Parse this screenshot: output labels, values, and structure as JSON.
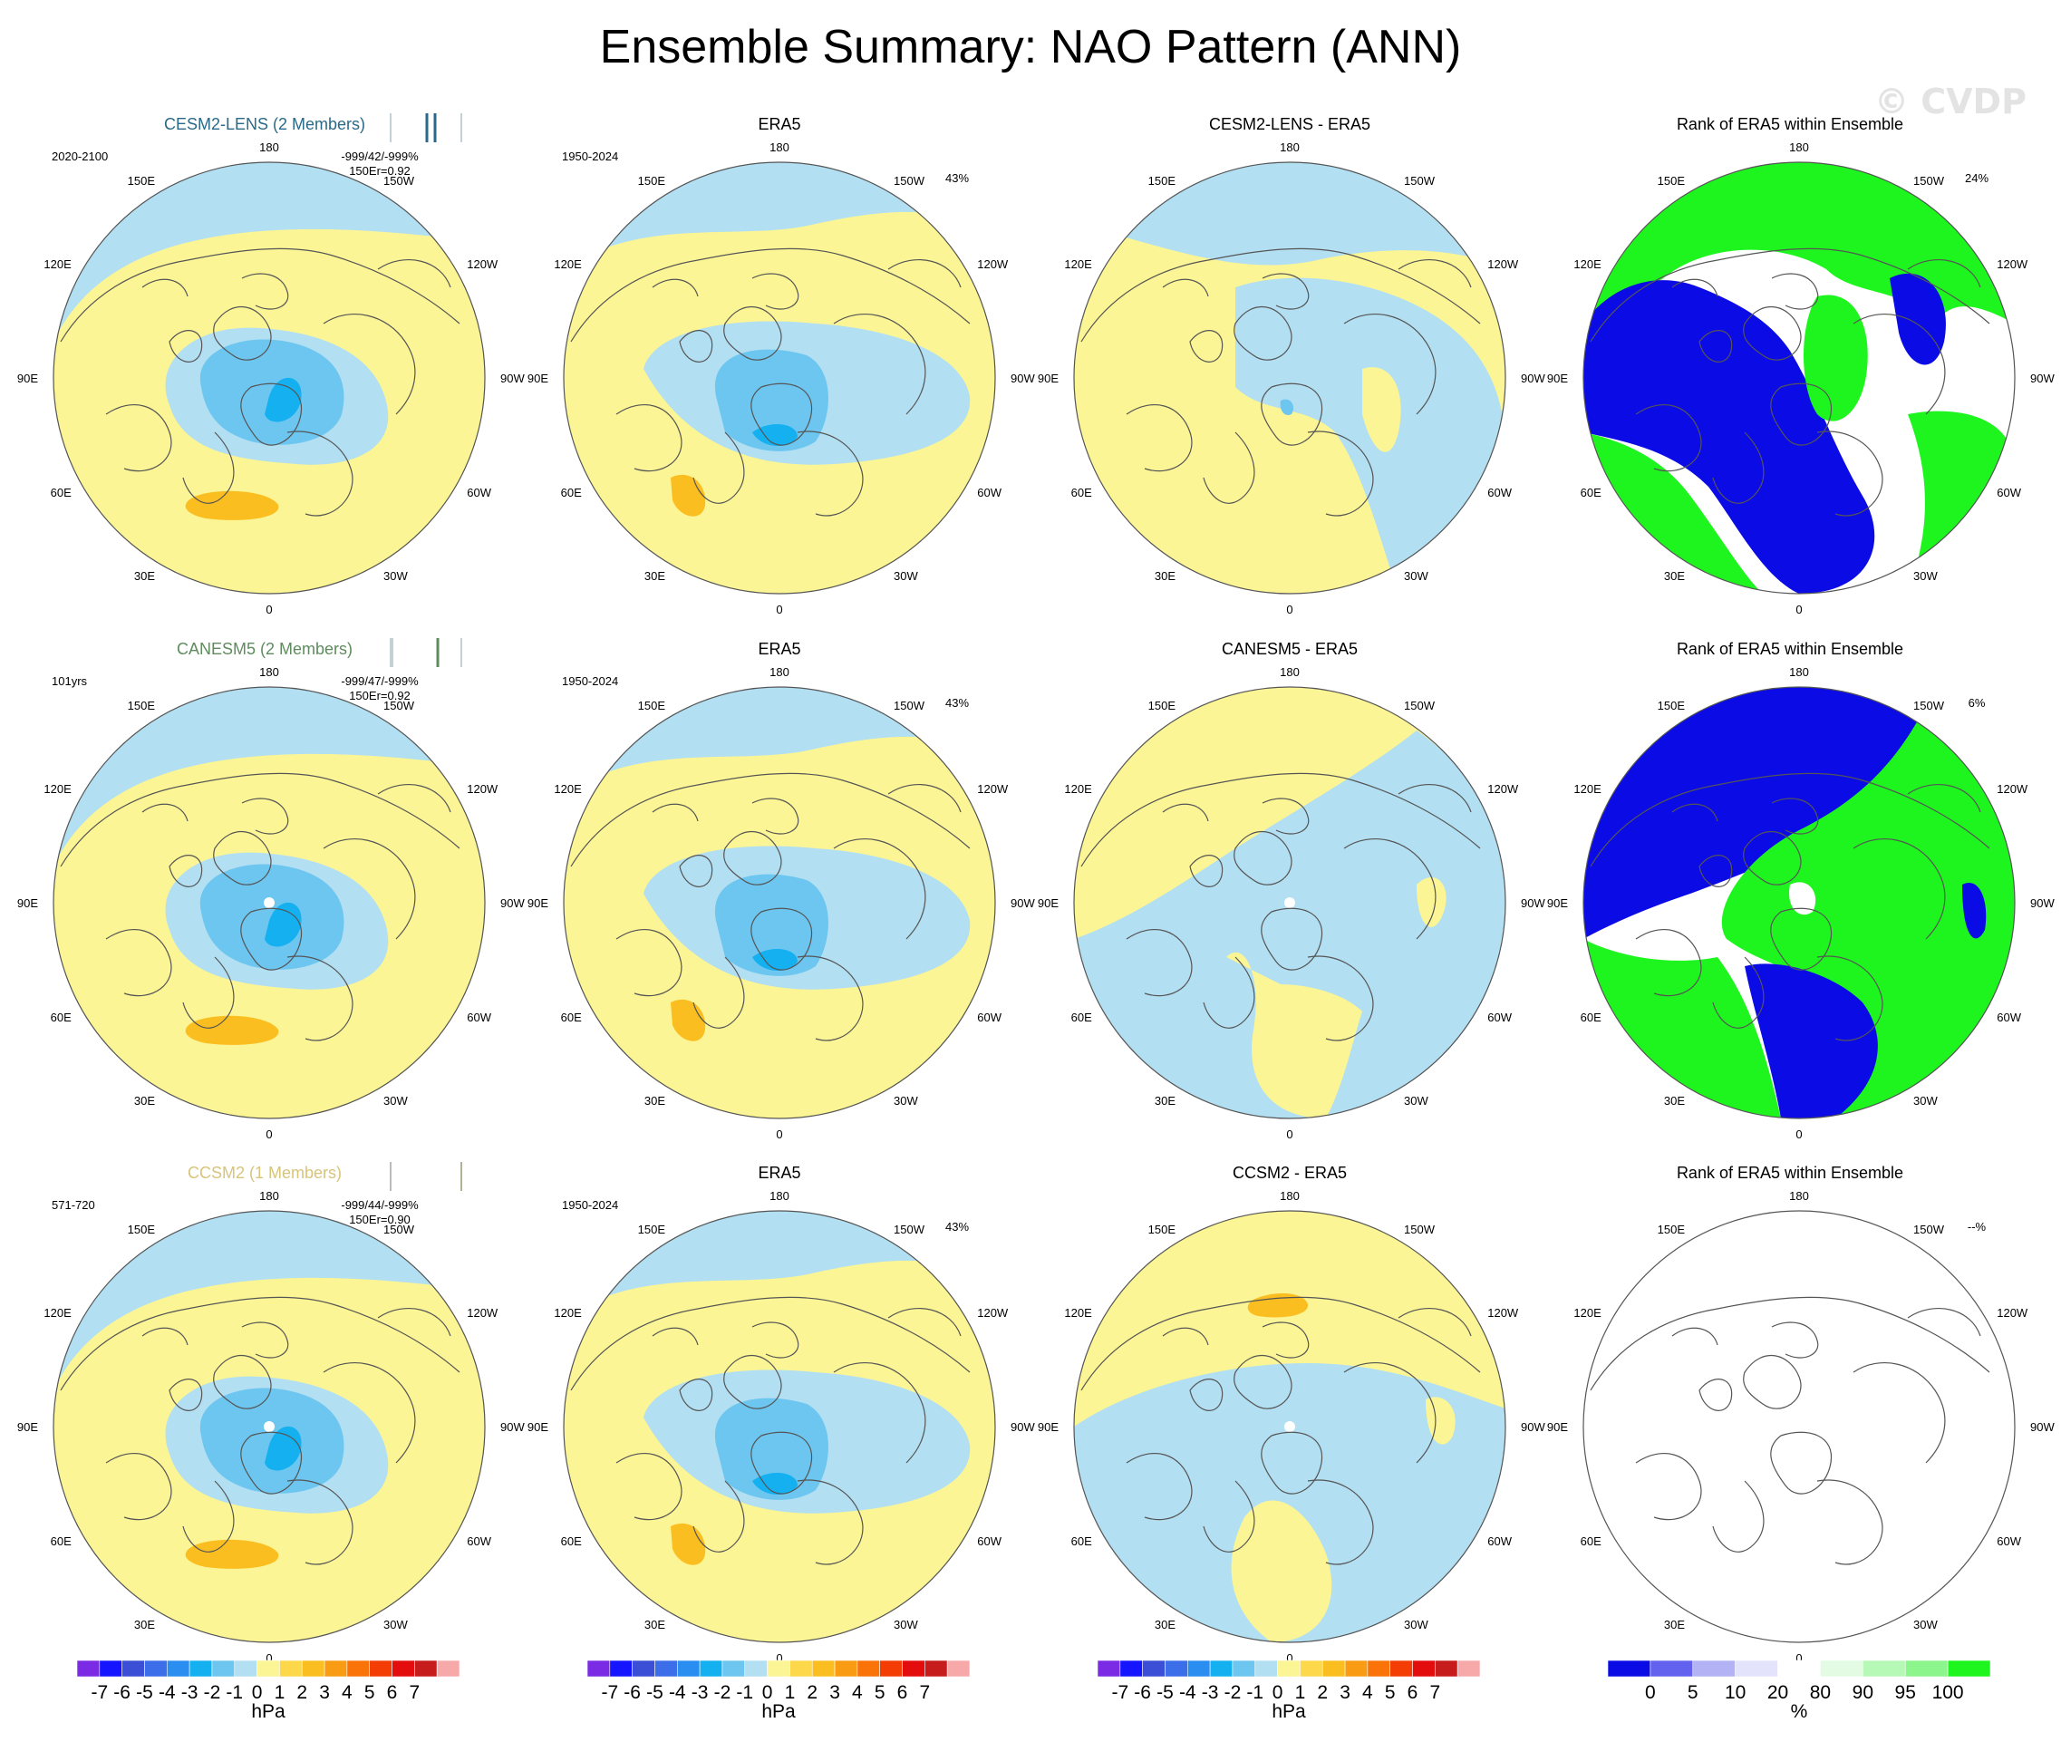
{
  "title": "Ensemble Summary: NAO Pattern (ANN)",
  "watermark": "© CVDP",
  "colors": {
    "neg_cat": [
      "#7b2be3",
      "#1515ff",
      "#3a4fd6",
      "#3b6ee8",
      "#2a8ef0",
      "#14b0f0",
      "#6cc6f0",
      "#b2dff2"
    ],
    "pos_cat": [
      "#fbf595",
      "#fcd84a",
      "#fbbe20",
      "#f99c14",
      "#f97308",
      "#f33d05",
      "#e40d0d",
      "#c71c1c",
      "#f7a8a8"
    ],
    "rank_cat": [
      "#0b0be6",
      "#6262ee",
      "#b2b2f4",
      "#e3e3fb",
      "#ffffff",
      "#e2fbe2",
      "#b6f8b6",
      "#8cf58c",
      "#1ef51e"
    ],
    "land_outline": "#555555",
    "model_title_colors": [
      "#2a6a88",
      "#5e8c5e",
      "#d8c47a"
    ]
  },
  "lon_labels": [
    "180",
    "150E",
    "120E",
    "90E",
    "60E",
    "30E",
    "0",
    "30W",
    "60W",
    "90W",
    "120W",
    "150W"
  ],
  "rows": [
    {
      "model_title": "CESM2-LENS (2 Members)",
      "model_period": "2020-2100",
      "model_stats_1": "-999/42/-999%",
      "model_stats_2": "150Er=0.92",
      "obs_title": "ERA5",
      "obs_period": "1950-2024",
      "obs_pct": "43%",
      "diff_title": "CESM2-LENS - ERA5",
      "rank_title": "Rank of ERA5 within Ensemble",
      "rank_pct": "24%",
      "rank_type": "filled"
    },
    {
      "model_title": "CANESM5 (2 Members)",
      "model_period": "101yrs",
      "model_stats_1": "-999/47/-999%",
      "model_stats_2": "150Er=0.92",
      "obs_title": "ERA5",
      "obs_period": "1950-2024",
      "obs_pct": "43%",
      "diff_title": "CANESM5 - ERA5",
      "rank_title": "Rank of ERA5 within Ensemble",
      "rank_pct": "6%",
      "rank_type": "filled"
    },
    {
      "model_title": "CCSM2 (1 Members)",
      "model_period": "571-720",
      "model_stats_1": "-999/44/-999%",
      "model_stats_2": "150Er=0.90",
      "obs_title": "ERA5",
      "obs_period": "1950-2024",
      "obs_pct": "43%",
      "diff_title": "CCSM2 - ERA5",
      "rank_title": "Rank of ERA5 within Ensemble",
      "rank_pct": "--%",
      "rank_type": "empty"
    }
  ],
  "chart_data": {
    "type": "heatmap",
    "title": "Ensemble Summary: NAO Pattern (ANN)",
    "projection": "north polar stereographic",
    "colorbars": [
      {
        "name": "pattern",
        "unit": "hPa",
        "tick_labels": [
          "-7",
          "-6",
          "-5",
          "-4",
          "-3",
          "-2",
          "-1",
          "0",
          "1",
          "2",
          "3",
          "4",
          "5",
          "6",
          "7"
        ],
        "categories": 17
      },
      {
        "name": "rank",
        "unit": "%",
        "tick_labels": [
          "0",
          "5",
          "10",
          "20",
          "80",
          "90",
          "95",
          "100"
        ],
        "categories": 9
      }
    ],
    "panels": [
      {
        "row": 1,
        "col": 1,
        "title": "CESM2-LENS (2 Members)",
        "period": "2020-2100"
      },
      {
        "row": 1,
        "col": 2,
        "title": "ERA5",
        "period": "1950-2024",
        "pct": "43%"
      },
      {
        "row": 1,
        "col": 3,
        "title": "CESM2-LENS - ERA5"
      },
      {
        "row": 1,
        "col": 4,
        "title": "Rank of ERA5 within Ensemble",
        "pct": "24%"
      },
      {
        "row": 2,
        "col": 1,
        "title": "CANESM5 (2 Members)",
        "period": "101yrs"
      },
      {
        "row": 2,
        "col": 2,
        "title": "ERA5",
        "period": "1950-2024",
        "pct": "43%"
      },
      {
        "row": 2,
        "col": 3,
        "title": "CANESM5 - ERA5"
      },
      {
        "row": 2,
        "col": 4,
        "title": "Rank of ERA5 within Ensemble",
        "pct": "6%"
      },
      {
        "row": 3,
        "col": 1,
        "title": "CCSM2 (1 Members)",
        "period": "571-720"
      },
      {
        "row": 3,
        "col": 2,
        "title": "ERA5",
        "period": "1950-2024",
        "pct": "43%"
      },
      {
        "row": 3,
        "col": 3,
        "title": "CCSM2 - ERA5"
      },
      {
        "row": 3,
        "col": 4,
        "title": "Rank of ERA5 within Ensemble",
        "pct": "--%"
      }
    ]
  }
}
